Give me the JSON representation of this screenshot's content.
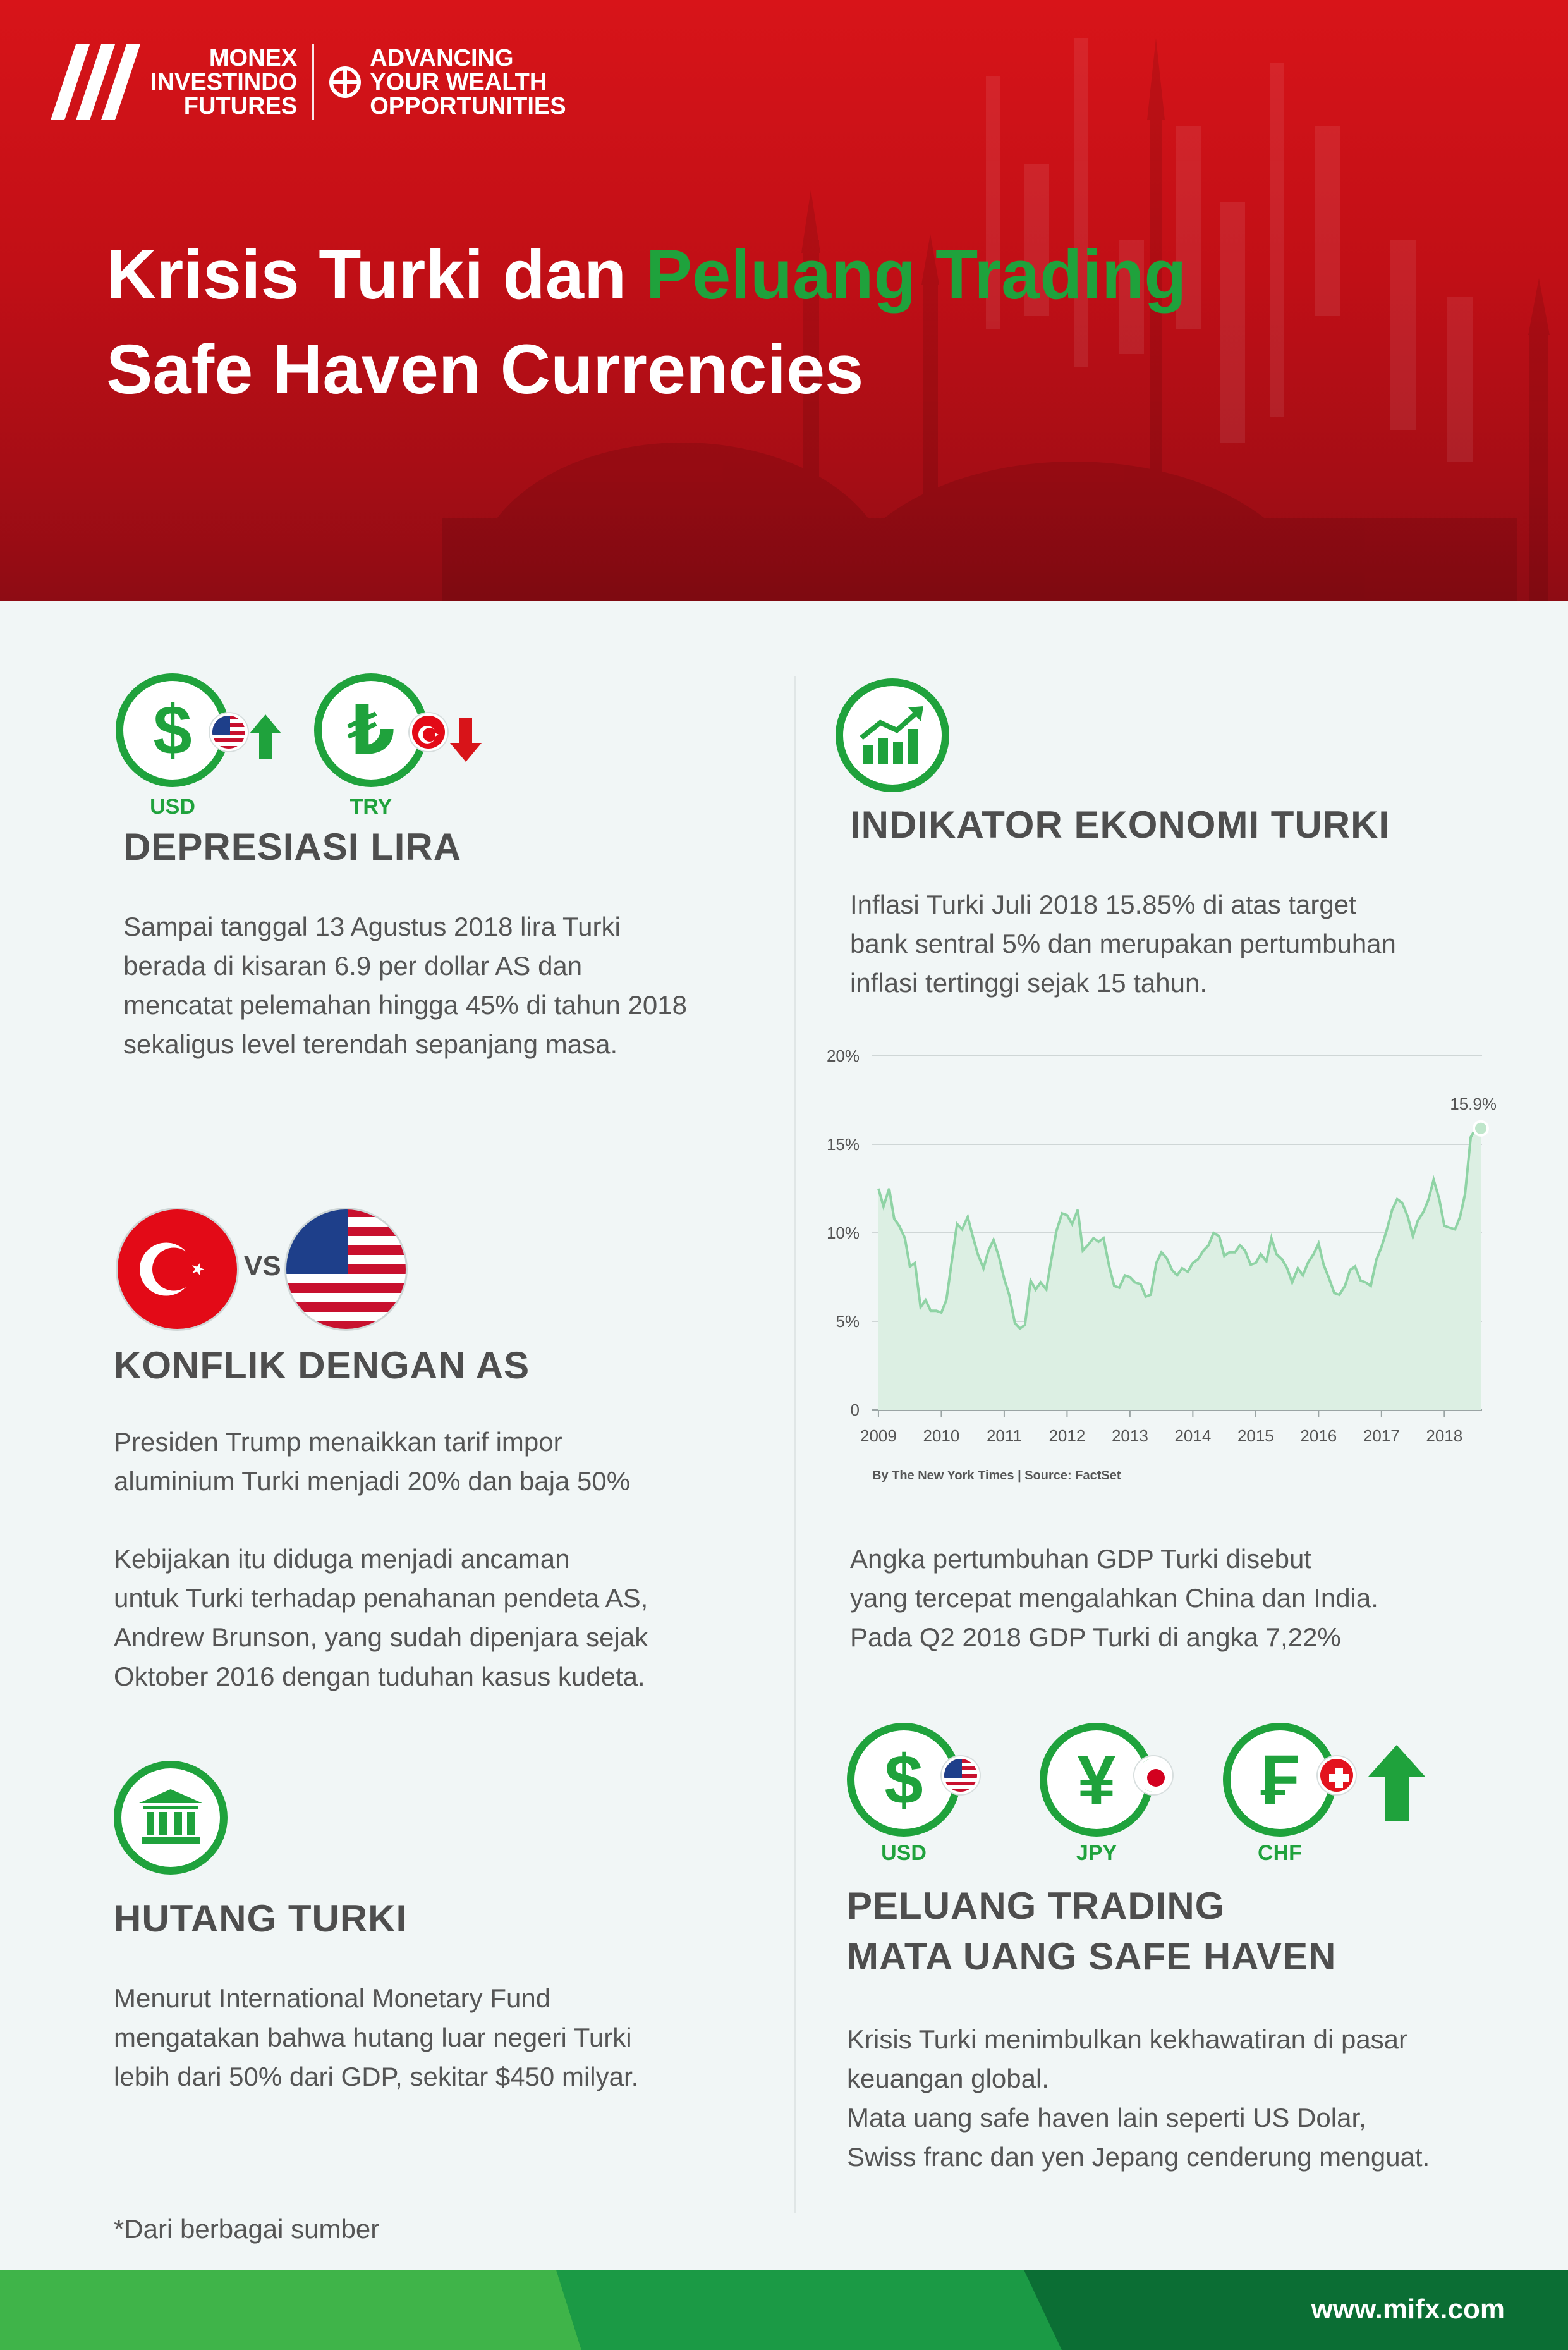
{
  "header": {
    "logo_line1": "MONEX",
    "logo_line2": "INVESTINDO",
    "logo_line3": "FUTURES",
    "tagline_line1": "ADVANCING",
    "tagline_line2": "YOUR WEALTH",
    "tagline_line3": "OPPORTUNITIES",
    "title_part1": "Krisis Turki dan ",
    "title_accent": "Peluang Trading",
    "title_line2": "Safe Haven Currencies"
  },
  "colors": {
    "brand_red": "#d81419",
    "brand_green": "#1fa23c",
    "text_grey": "#4e4e4e"
  },
  "depresiasi": {
    "usd_label": "USD",
    "try_label": "TRY",
    "usd_symbol": "$",
    "try_symbol": "₺",
    "heading": "DEPRESIASI LIRA",
    "lines": [
      "Sampai tanggal 13 Agustus 2018 lira Turki",
      "berada di kisaran 6.9 per dollar AS dan",
      "mencatat pelemahan hingga 45% di tahun 2018",
      "sekaligus level terendah sepanjang masa."
    ]
  },
  "konflik": {
    "vs_label": "VS",
    "heading": "KONFLIK DENGAN AS",
    "lines1": [
      "Presiden Trump menaikkan tarif impor",
      "aluminium Turki menjadi 20% dan baja 50%"
    ],
    "lines2": [
      "Kebijakan itu diduga menjadi ancaman",
      "untuk Turki terhadap penahanan pendeta AS,",
      "Andrew Brunson, yang sudah dipenjara sejak",
      "Oktober 2016 dengan tuduhan kasus kudeta."
    ]
  },
  "hutang": {
    "heading": "HUTANG TURKI",
    "lines": [
      "Menurut International Monetary Fund",
      "mengatakan bahwa hutang luar negeri Turki",
      "lebih dari 50% dari GDP, sekitar $450 milyar."
    ]
  },
  "source_note": "*Dari berbagai sumber",
  "indikator": {
    "heading": "INDIKATOR EKONOMI TURKI",
    "lines": [
      "Inflasi Turki Juli 2018 15.85% di atas target",
      "bank sentral 5% dan merupakan pertumbuhan",
      "inflasi tertinggi sejak 15 tahun."
    ],
    "gdp_lines": [
      "Angka pertumbuhan GDP Turki disebut",
      "yang tercepat mengalahkan China dan India.",
      "Pada Q2 2018 GDP Turki di angka 7,22%"
    ]
  },
  "chart_data": {
    "type": "area",
    "title": "",
    "xlabel": "",
    "ylabel": "",
    "xlim": [
      2008.9,
      2018.6
    ],
    "ylim": [
      0,
      20
    ],
    "y_ticks": [
      "0",
      "5%",
      "10%",
      "15%",
      "20%"
    ],
    "x_ticks": [
      "2009",
      "2010",
      "2011",
      "2012",
      "2013",
      "2014",
      "2015",
      "2016",
      "2017",
      "2018"
    ],
    "grid": true,
    "line_color": "#8fd3a5",
    "fill_color": "#dcefe3",
    "annotation": "15.9%",
    "source": "By The New York Times | Source: FactSet",
    "x": [
      2009.0,
      2009.08,
      2009.17,
      2009.25,
      2009.33,
      2009.42,
      2009.5,
      2009.58,
      2009.67,
      2009.75,
      2009.83,
      2009.92,
      2010.0,
      2010.08,
      2010.17,
      2010.25,
      2010.33,
      2010.42,
      2010.5,
      2010.58,
      2010.67,
      2010.75,
      2010.83,
      2010.92,
      2011.0,
      2011.08,
      2011.17,
      2011.25,
      2011.33,
      2011.42,
      2011.5,
      2011.58,
      2011.67,
      2011.75,
      2011.83,
      2011.92,
      2012.0,
      2012.08,
      2012.17,
      2012.25,
      2012.33,
      2012.42,
      2012.5,
      2012.58,
      2012.67,
      2012.75,
      2012.83,
      2012.92,
      2013.0,
      2013.08,
      2013.17,
      2013.25,
      2013.33,
      2013.42,
      2013.5,
      2013.58,
      2013.67,
      2013.75,
      2013.83,
      2013.92,
      2014.0,
      2014.08,
      2014.17,
      2014.25,
      2014.33,
      2014.42,
      2014.5,
      2014.58,
      2014.67,
      2014.75,
      2014.83,
      2014.92,
      2015.0,
      2015.08,
      2015.17,
      2015.25,
      2015.33,
      2015.42,
      2015.5,
      2015.58,
      2015.67,
      2015.75,
      2015.83,
      2015.92,
      2016.0,
      2016.08,
      2016.17,
      2016.25,
      2016.33,
      2016.42,
      2016.5,
      2016.58,
      2016.67,
      2016.75,
      2016.83,
      2016.92,
      2017.0,
      2017.08,
      2017.17,
      2017.25,
      2017.33,
      2017.42,
      2017.5,
      2017.58,
      2017.67,
      2017.75,
      2017.83,
      2017.92,
      2018.0,
      2018.08,
      2018.17,
      2018.25,
      2018.33,
      2018.42,
      2018.5,
      2018.58
    ],
    "values": [
      12.5,
      11.5,
      12.5,
      10.8,
      10.4,
      9.7,
      8.1,
      8.3,
      5.8,
      6.2,
      5.6,
      5.6,
      5.5,
      6.2,
      8.5,
      10.5,
      10.2,
      10.9,
      9.8,
      8.8,
      8.0,
      9.0,
      9.6,
      8.6,
      7.4,
      6.5,
      4.9,
      4.6,
      4.8,
      7.3,
      6.8,
      7.2,
      6.8,
      8.5,
      10.1,
      11.1,
      11.0,
      10.5,
      11.3,
      9.0,
      9.3,
      9.7,
      9.5,
      9.7,
      8.1,
      7.0,
      6.9,
      7.6,
      7.5,
      7.2,
      7.1,
      6.4,
      6.5,
      8.3,
      8.9,
      8.6,
      7.9,
      7.6,
      8.0,
      7.8,
      8.3,
      8.5,
      9.0,
      9.3,
      10.0,
      9.8,
      8.7,
      8.9,
      8.9,
      9.3,
      9.0,
      8.2,
      8.3,
      8.8,
      8.4,
      9.7,
      8.8,
      8.5,
      8.0,
      7.2,
      8.0,
      7.6,
      8.3,
      8.8,
      9.4,
      8.2,
      7.4,
      6.6,
      6.5,
      7.0,
      7.9,
      8.1,
      7.3,
      7.2,
      7.0,
      8.5,
      9.2,
      10.1,
      11.3,
      11.9,
      11.7,
      10.9,
      9.8,
      10.7,
      11.2,
      11.9,
      13.0,
      11.9,
      10.4,
      10.3,
      10.2,
      10.9,
      12.2,
      15.4,
      15.9,
      15.9
    ]
  },
  "peluang": {
    "usd_label": "USD",
    "jpy_label": "JPY",
    "chf_label": "CHF",
    "usd_symbol": "$",
    "jpy_symbol": "¥",
    "chf_symbol": "₣",
    "heading_line1": "PELUANG TRADING",
    "heading_line2": "MATA UANG SAFE HAVEN",
    "lines": [
      "Krisis Turki menimbulkan kekhawatiran di pasar",
      "keuangan global.",
      "Mata uang safe haven lain seperti US Dolar,",
      "Swiss franc dan yen Jepang cenderung menguat."
    ]
  },
  "footer": {
    "url": "www.mifx.com"
  }
}
